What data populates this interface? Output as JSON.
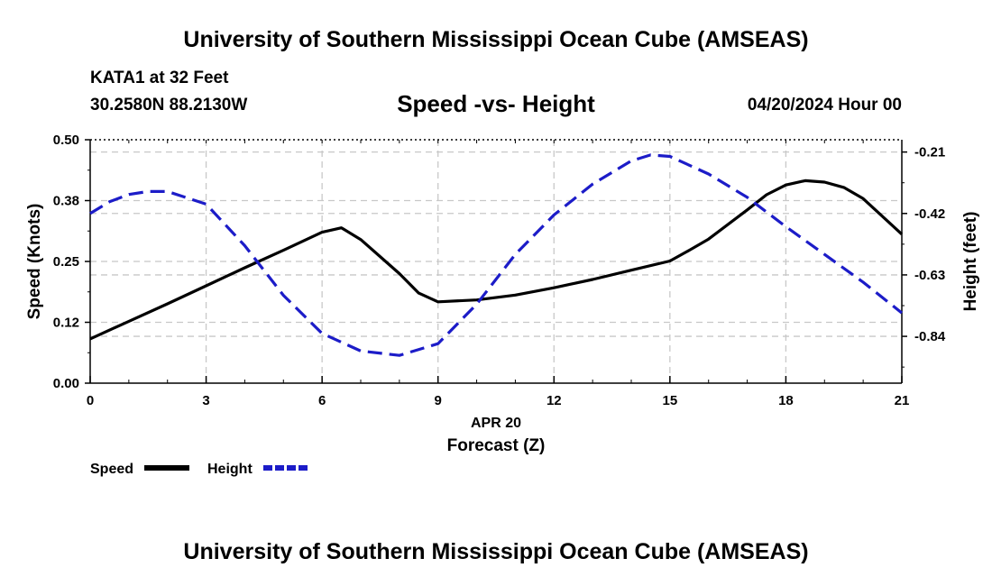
{
  "header": {
    "top_title": "University of Southern Mississippi Ocean Cube (AMSEAS)",
    "station": "KATA1 at 32 Feet",
    "coords": "30.2580N  88.2130W",
    "chart_title": "Speed -vs- Height",
    "date": "04/20/2024 Hour 00"
  },
  "footer": {
    "bottom_title": "University of Southern Mississippi Ocean Cube (AMSEAS)"
  },
  "chart_data": {
    "type": "line",
    "title": "Speed -vs- Height",
    "xlabel": "Forecast (Z)",
    "xdate": "APR 20",
    "ylabel": "Speed (Knots)",
    "y2label": "Height (feet)",
    "xlim": [
      0,
      21
    ],
    "ylim": [
      0,
      0.5
    ],
    "y2lim": [
      -1.0,
      -0.168
    ],
    "x_ticks": [
      "0",
      "3",
      "6",
      "9",
      "12",
      "15",
      "18",
      "21"
    ],
    "x_tick_values": [
      0,
      3,
      6,
      9,
      12,
      15,
      18,
      21
    ],
    "y_ticks": [
      "0.00",
      "0.12",
      "0.25",
      "0.38",
      "0.50"
    ],
    "y_tick_values": [
      0,
      0.125,
      0.25,
      0.375,
      0.5
    ],
    "y2_ticks": [
      "-0.21",
      "-0.42",
      "-0.63",
      "-0.84"
    ],
    "y2_tick_values": [
      -0.21,
      -0.42,
      -0.63,
      -0.84
    ],
    "grid": true,
    "series": [
      {
        "name": "Speed",
        "axis": "left",
        "color": "#000000",
        "dash": "solid",
        "x": [
          0,
          1,
          2,
          3,
          4,
          5,
          6,
          6.5,
          7,
          8,
          8.5,
          9,
          10,
          11,
          12,
          13,
          14,
          15,
          15.5,
          16,
          17,
          17.5,
          18,
          18.5,
          19,
          19.5,
          20,
          21
        ],
        "y": [
          0.091,
          0.127,
          0.163,
          0.2,
          0.237,
          0.273,
          0.31,
          0.319,
          0.295,
          0.225,
          0.185,
          0.167,
          0.171,
          0.181,
          0.196,
          0.213,
          0.232,
          0.251,
          0.273,
          0.296,
          0.356,
          0.387,
          0.407,
          0.416,
          0.413,
          0.402,
          0.379,
          0.306
        ]
      },
      {
        "name": "Height",
        "axis": "right",
        "color": "#1c1cc8",
        "dash": "dashed",
        "x": [
          0,
          0.5,
          1,
          1.5,
          2,
          3,
          4,
          5,
          6,
          7,
          8,
          9,
          10,
          11,
          12,
          13,
          14,
          14.5,
          15,
          16,
          17,
          18,
          19,
          20,
          21
        ],
        "y": [
          -0.42,
          -0.38,
          -0.355,
          -0.345,
          -0.345,
          -0.388,
          -0.53,
          -0.7,
          -0.83,
          -0.89,
          -0.905,
          -0.865,
          -0.73,
          -0.56,
          -0.425,
          -0.32,
          -0.24,
          -0.22,
          -0.225,
          -0.285,
          -0.365,
          -0.465,
          -0.56,
          -0.655,
          -0.76
        ]
      }
    ]
  }
}
